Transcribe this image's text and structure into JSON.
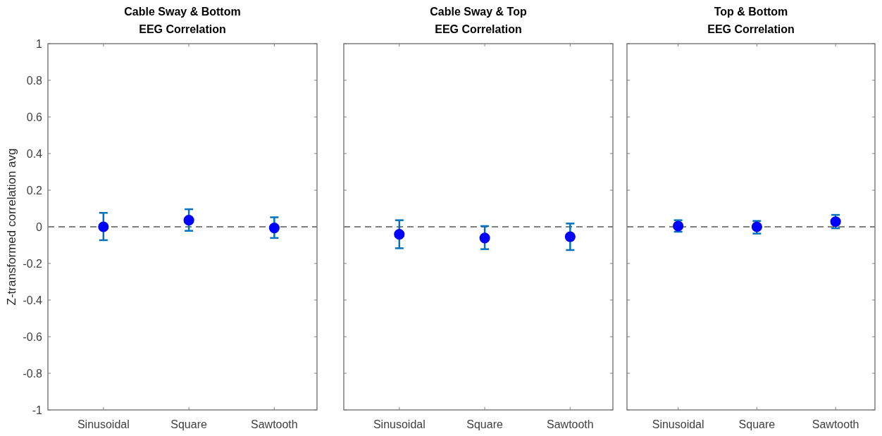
{
  "chart_data": [
    {
      "type": "scatter",
      "title": "Cable Sway & Bottom\nEEG Correlation",
      "ylabel": "Z-transformed correlation avg",
      "categories": [
        "Sinusoidal",
        "Square",
        "Sawtooth"
      ],
      "series": [
        {
          "color": "#0000ff",
          "values": [
            0,
            0.036,
            -0.006
          ],
          "errors": [
            [
              -0.073,
              0.076
            ],
            [
              -0.022,
              0.096
            ],
            [
              -0.061,
              0.052
            ]
          ]
        }
      ],
      "ylim": [
        -1,
        1
      ],
      "yticks": [
        -1,
        -0.8,
        -0.6,
        -0.4,
        -0.2,
        0,
        0.2,
        0.4,
        0.6,
        0.8,
        1
      ],
      "ref_lines": [
        {
          "axis": "y",
          "value": 0,
          "color": "#808080",
          "line_style": "dashed"
        }
      ],
      "marker": "circle",
      "grid": false
    },
    {
      "type": "scatter",
      "title": "Cable Sway & Top\nEEG Correlation",
      "categories": [
        "Sinusoidal",
        "Square",
        "Sawtooth"
      ],
      "series": [
        {
          "color": "#0000ff",
          "values": [
            -0.041,
            -0.061,
            -0.054
          ],
          "errors": [
            [
              -0.117,
              0.036
            ],
            [
              -0.122,
              0.004
            ],
            [
              -0.127,
              0.018
            ]
          ]
        }
      ],
      "ylim": [
        -1,
        1
      ],
      "yticks": [
        -1,
        -0.8,
        -0.6,
        -0.4,
        -0.2,
        0,
        0.2,
        0.4,
        0.6,
        0.8,
        1
      ],
      "tick_labels": "x",
      "ref_lines": [
        {
          "axis": "y",
          "value": 0,
          "color": "#808080",
          "line_style": "dashed"
        }
      ],
      "marker": "circle",
      "grid": false
    },
    {
      "type": "scatter",
      "title": "Top & Bottom\nEEG Correlation",
      "categories": [
        "Sinusoidal",
        "Square",
        "Sawtooth"
      ],
      "series": [
        {
          "color": "#0000ff",
          "values": [
            0.004,
            0,
            0.028
          ],
          "errors": [
            [
              -0.027,
              0.036
            ],
            [
              -0.037,
              0.032
            ],
            [
              -0.008,
              0.065
            ]
          ]
        }
      ],
      "ylim": [
        -1,
        1
      ],
      "yticks": [
        -1,
        -0.8,
        -0.6,
        -0.4,
        -0.2,
        0,
        0.2,
        0.4,
        0.6,
        0.8,
        1
      ],
      "tick_labels": "x",
      "ref_lines": [
        {
          "axis": "y",
          "value": 0,
          "color": "#808080",
          "line_style": "dashed"
        }
      ],
      "marker": "circle",
      "grid": false
    }
  ]
}
